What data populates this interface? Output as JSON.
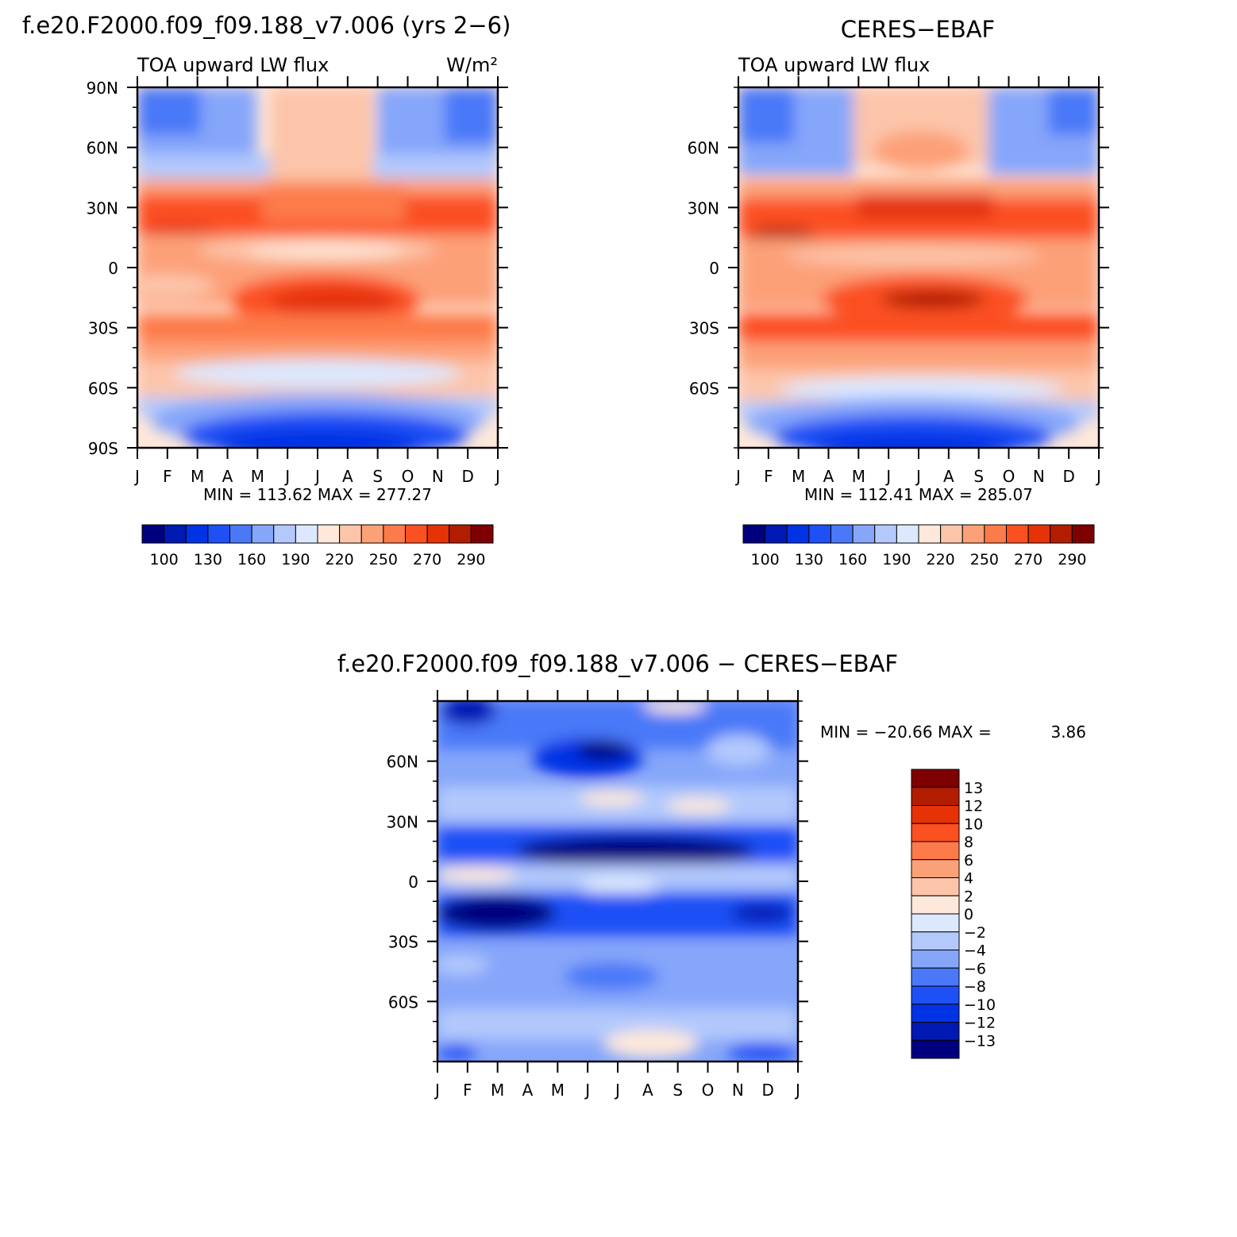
{
  "figure": {
    "left_title": "f.e20.F2000.f09_f09.188_v7.006 (yrs 2−6)",
    "right_title": "CERES−EBAF",
    "bottom_title": "f.e20.F2000.f09_f09.188_v7.006 − CERES−EBAF"
  },
  "chart_data": [
    {
      "type": "heatmap",
      "name": "model",
      "subtitle": "TOA upward LW flux",
      "units": "W/m²",
      "x_ticks": [
        "J",
        "F",
        "M",
        "A",
        "M",
        "J",
        "J",
        "A",
        "S",
        "O",
        "N",
        "D",
        "J"
      ],
      "y_ticks": [
        "90N",
        "60N",
        "30N",
        "0",
        "30S",
        "60S",
        "90S"
      ],
      "ylim": [
        -90,
        90
      ],
      "min_max": "MIN = 113.62  MAX = 277.27",
      "colorbar": {
        "levels": [
          "100",
          "130",
          "160",
          "190",
          "220",
          "250",
          "270",
          "290"
        ],
        "colors": [
          "#00007f",
          "#0019b2",
          "#0033e5",
          "#1e50f5",
          "#4a78f8",
          "#86a6fa",
          "#b3c9fc",
          "#dce8fe",
          "#fee8da",
          "#fcc5aa",
          "#fca078",
          "#fd7a4a",
          "#fb5020",
          "#e53207",
          "#b21d00",
          "#7f0000"
        ]
      },
      "fields": {
        "lat_values": [
          90,
          60,
          30,
          15,
          0,
          -15,
          -30,
          -60,
          -90
        ],
        "flux_annual_mean": [
          165,
          195,
          255,
          268,
          240,
          262,
          255,
          205,
          130
        ]
      }
    },
    {
      "type": "heatmap",
      "name": "obs",
      "subtitle": "TOA upward LW flux",
      "x_ticks": [
        "J",
        "F",
        "M",
        "A",
        "M",
        "J",
        "J",
        "A",
        "S",
        "O",
        "N",
        "D",
        "J"
      ],
      "y_ticks": [
        "60N",
        "30N",
        "0",
        "30S",
        "60S"
      ],
      "ylim": [
        -90,
        90
      ],
      "min_max": "MIN = 112.41  MAX = 285.07",
      "colorbar": {
        "levels": [
          "100",
          "130",
          "160",
          "190",
          "220",
          "250",
          "270",
          "290"
        ],
        "colors": [
          "#00007f",
          "#0019b2",
          "#0033e5",
          "#1e50f5",
          "#4a78f8",
          "#86a6fa",
          "#b3c9fc",
          "#dce8fe",
          "#fee8da",
          "#fcc5aa",
          "#fca078",
          "#fd7a4a",
          "#fb5020",
          "#e53207",
          "#b21d00",
          "#7f0000"
        ]
      }
    },
    {
      "type": "heatmap",
      "name": "difference",
      "x_ticks": [
        "J",
        "F",
        "M",
        "A",
        "M",
        "J",
        "J",
        "A",
        "S",
        "O",
        "N",
        "D",
        "J"
      ],
      "y_ticks": [
        "60N",
        "30N",
        "0",
        "30S",
        "60S"
      ],
      "ylim": [
        -90,
        90
      ],
      "min_max_label": "MIN = −20.66 MAX =",
      "max_value": "3.86",
      "colorbar": {
        "levels": [
          "13",
          "12",
          "10",
          "8",
          "6",
          "4",
          "2",
          "0",
          "−2",
          "−4",
          "−6",
          "−8",
          "−10",
          "−12",
          "−13"
        ],
        "colors": [
          "#7f0000",
          "#b21d00",
          "#e53207",
          "#fb5020",
          "#fd7a4a",
          "#fca078",
          "#fcc5aa",
          "#fee8da",
          "#dce8fe",
          "#b3c9fc",
          "#86a6fa",
          "#4a78f8",
          "#1e50f5",
          "#0033e5",
          "#0019b2",
          "#00007f"
        ]
      }
    }
  ]
}
